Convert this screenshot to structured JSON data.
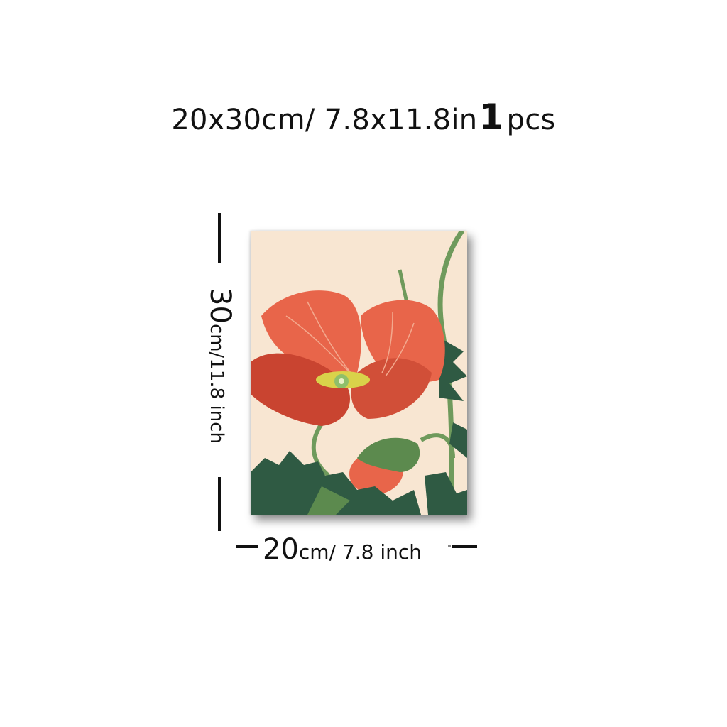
{
  "headline": {
    "size_text": "20x30cm/ 7.8x11.8in",
    "quantity": "1",
    "quantity_unit": "pcs"
  },
  "height_dimension": {
    "value": "30",
    "unit": "cm/11.8 inch"
  },
  "width_dimension": {
    "value": "20",
    "unit": "cm/ 7.8 inch"
  },
  "colors": {
    "background": "#ffffff",
    "canvas": "#f8e6d2",
    "petal": "#e8654a",
    "petal_dark": "#c94430",
    "stem": "#6f9a5c",
    "leaf": "#2f5a43"
  }
}
